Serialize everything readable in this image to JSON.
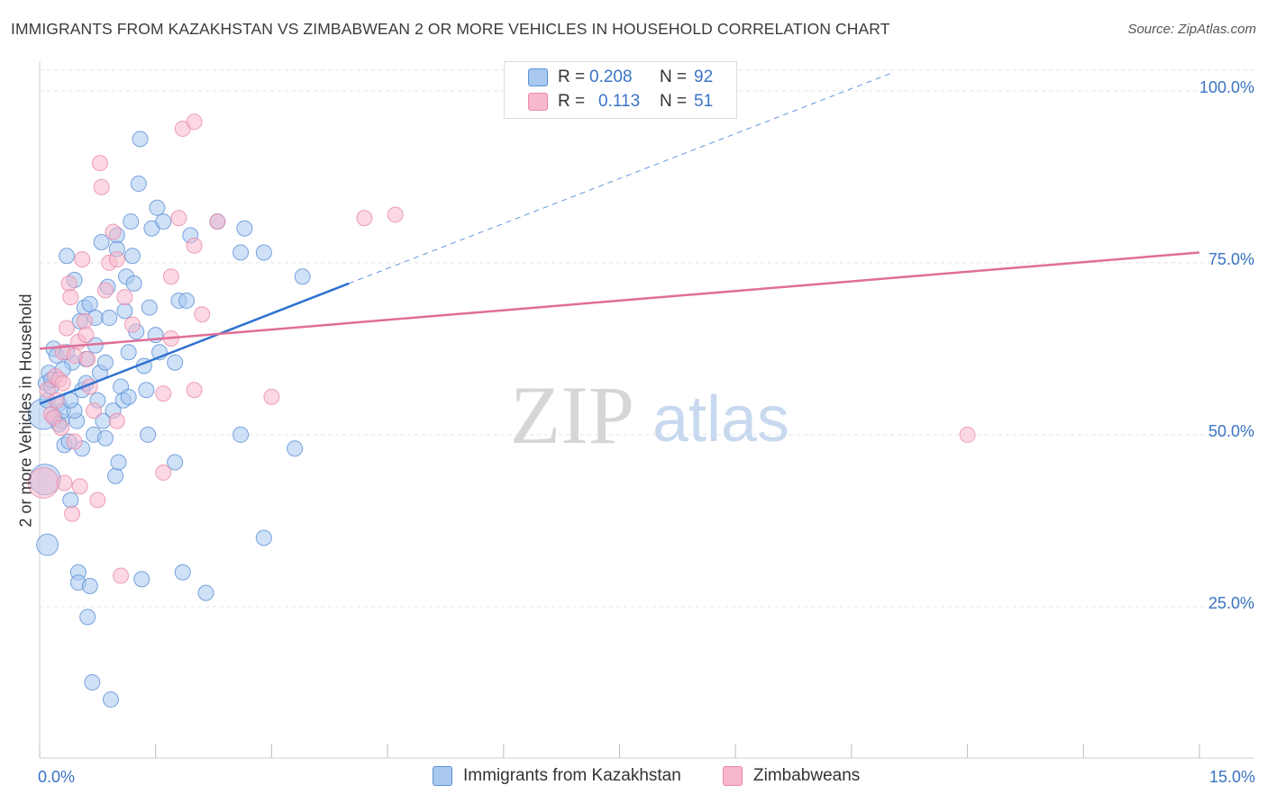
{
  "title": "IMMIGRANTS FROM KAZAKHSTAN VS ZIMBABWEAN 2 OR MORE VEHICLES IN HOUSEHOLD CORRELATION CHART",
  "source": "Source: ZipAtlas.com",
  "watermark": {
    "zip": "ZIP",
    "atlas": "atlas"
  },
  "colors": {
    "blue_fill": "#a8c8f0",
    "blue_stroke": "#5b8fd6",
    "blue_line": "#2f72d1",
    "pink_fill": "#f7b8cc",
    "pink_stroke": "#e98aa9",
    "pink_line": "#e06e97",
    "tick_text": "#3a74c4",
    "grid": "#e3e3e3"
  },
  "legend_top": [
    {
      "r_label": "R =",
      "r_value": "0.208",
      "n_label": "N =",
      "n_value": "92"
    },
    {
      "r_label": "R =",
      "r_value": "0.113",
      "n_label": "N =",
      "n_value": "51"
    }
  ],
  "chart_data": {
    "type": "scatter",
    "title": "IMMIGRANTS FROM KAZAKHSTAN VS ZIMBABWEAN 2 OR MORE VEHICLES IN HOUSEHOLD CORRELATION CHART",
    "xlabel": "",
    "ylabel": "2 or more Vehicles in Household",
    "xlim": [
      0,
      15
    ],
    "ylim": [
      3,
      103
    ],
    "x_tick_labels": {
      "left": "0.0%",
      "right": "15.0%"
    },
    "y_ticks": [
      25,
      50,
      75,
      100
    ],
    "y_tick_labels": [
      "25.0%",
      "50.0%",
      "75.0%",
      "100.0%"
    ],
    "legend_position": "top-center",
    "series": [
      {
        "name": "Immigrants from Kazakhstan",
        "color": "blue",
        "trend": {
          "x0": 0.0,
          "y0": 54.5,
          "x1": 4.0,
          "y1": 72.0,
          "dashed_to_x": 11.0,
          "dashed_to_y": 102.5
        },
        "points": [
          {
            "x": 0.05,
            "y": 53.0,
            "s": 2
          },
          {
            "x": 0.07,
            "y": 43.5,
            "s": 2
          },
          {
            "x": 0.1,
            "y": 34.0,
            "s": 1.4
          },
          {
            "x": 0.08,
            "y": 57.5
          },
          {
            "x": 0.1,
            "y": 55.0
          },
          {
            "x": 0.12,
            "y": 59.0
          },
          {
            "x": 0.15,
            "y": 57.0
          },
          {
            "x": 0.18,
            "y": 62.5
          },
          {
            "x": 0.2,
            "y": 52.5
          },
          {
            "x": 0.22,
            "y": 61.5
          },
          {
            "x": 0.25,
            "y": 54.5
          },
          {
            "x": 0.28,
            "y": 52.0
          },
          {
            "x": 0.3,
            "y": 53.5
          },
          {
            "x": 0.32,
            "y": 48.5
          },
          {
            "x": 0.35,
            "y": 76.0
          },
          {
            "x": 0.38,
            "y": 49.0
          },
          {
            "x": 0.4,
            "y": 40.5
          },
          {
            "x": 0.42,
            "y": 60.5
          },
          {
            "x": 0.45,
            "y": 72.5
          },
          {
            "x": 0.48,
            "y": 52.0
          },
          {
            "x": 0.5,
            "y": 30.0
          },
          {
            "x": 0.5,
            "y": 28.5
          },
          {
            "x": 0.52,
            "y": 66.5
          },
          {
            "x": 0.55,
            "y": 56.5
          },
          {
            "x": 0.58,
            "y": 68.5
          },
          {
            "x": 0.6,
            "y": 61.0
          },
          {
            "x": 0.62,
            "y": 23.5
          },
          {
            "x": 0.65,
            "y": 28.0
          },
          {
            "x": 0.68,
            "y": 14.0
          },
          {
            "x": 0.7,
            "y": 50.0
          },
          {
            "x": 0.72,
            "y": 67.0
          },
          {
            "x": 0.75,
            "y": 55.0
          },
          {
            "x": 0.78,
            "y": 59.0
          },
          {
            "x": 0.8,
            "y": 78.0
          },
          {
            "x": 0.82,
            "y": 52.0
          },
          {
            "x": 0.85,
            "y": 60.5
          },
          {
            "x": 0.88,
            "y": 71.5
          },
          {
            "x": 0.9,
            "y": 67.0
          },
          {
            "x": 0.92,
            "y": 11.5
          },
          {
            "x": 0.95,
            "y": 53.5
          },
          {
            "x": 0.98,
            "y": 44.0
          },
          {
            "x": 1.0,
            "y": 79.0
          },
          {
            "x": 1.02,
            "y": 46.0
          },
          {
            "x": 1.05,
            "y": 57.0
          },
          {
            "x": 1.08,
            "y": 55.0
          },
          {
            "x": 1.1,
            "y": 68.0
          },
          {
            "x": 1.12,
            "y": 73.0
          },
          {
            "x": 1.15,
            "y": 62.0
          },
          {
            "x": 1.18,
            "y": 81.0
          },
          {
            "x": 1.2,
            "y": 76.0
          },
          {
            "x": 1.22,
            "y": 72.0
          },
          {
            "x": 1.25,
            "y": 65.0
          },
          {
            "x": 1.28,
            "y": 86.5
          },
          {
            "x": 1.3,
            "y": 93.0
          },
          {
            "x": 1.32,
            "y": 29.0
          },
          {
            "x": 1.35,
            "y": 60.0
          },
          {
            "x": 1.38,
            "y": 56.5
          },
          {
            "x": 1.4,
            "y": 50.0
          },
          {
            "x": 1.42,
            "y": 68.5
          },
          {
            "x": 1.45,
            "y": 80.0
          },
          {
            "x": 1.5,
            "y": 64.5
          },
          {
            "x": 1.52,
            "y": 83.0
          },
          {
            "x": 1.55,
            "y": 62.0
          },
          {
            "x": 1.6,
            "y": 81.0
          },
          {
            "x": 1.75,
            "y": 60.5
          },
          {
            "x": 1.75,
            "y": 46.0
          },
          {
            "x": 1.8,
            "y": 69.5
          },
          {
            "x": 1.85,
            "y": 30.0
          },
          {
            "x": 1.9,
            "y": 69.5
          },
          {
            "x": 1.95,
            "y": 79.0
          },
          {
            "x": 2.15,
            "y": 27.0
          },
          {
            "x": 2.3,
            "y": 81.0
          },
          {
            "x": 2.6,
            "y": 76.5
          },
          {
            "x": 2.65,
            "y": 80.0
          },
          {
            "x": 2.6,
            "y": 50.0
          },
          {
            "x": 2.9,
            "y": 76.5
          },
          {
            "x": 2.9,
            "y": 35.0
          },
          {
            "x": 3.3,
            "y": 48.0
          },
          {
            "x": 3.4,
            "y": 73.0
          },
          {
            "x": 0.35,
            "y": 62.0
          },
          {
            "x": 0.45,
            "y": 53.5
          },
          {
            "x": 0.55,
            "y": 48.0
          },
          {
            "x": 0.6,
            "y": 57.5
          },
          {
            "x": 0.25,
            "y": 51.5
          },
          {
            "x": 0.15,
            "y": 58.0
          },
          {
            "x": 0.3,
            "y": 59.5
          },
          {
            "x": 0.4,
            "y": 55.0
          },
          {
            "x": 0.65,
            "y": 69.0
          },
          {
            "x": 0.72,
            "y": 63.0
          },
          {
            "x": 0.85,
            "y": 49.5
          },
          {
            "x": 1.0,
            "y": 77.0
          },
          {
            "x": 1.15,
            "y": 55.5
          }
        ]
      },
      {
        "name": "Zimbabweans",
        "color": "pink",
        "trend": {
          "x0": 0.0,
          "y0": 62.5,
          "x1": 15.0,
          "y1": 76.5
        },
        "points": [
          {
            "x": 0.05,
            "y": 43.0,
            "s": 2
          },
          {
            "x": 0.1,
            "y": 56.5
          },
          {
            "x": 0.15,
            "y": 53.0
          },
          {
            "x": 0.18,
            "y": 52.5
          },
          {
            "x": 0.2,
            "y": 58.5
          },
          {
            "x": 0.22,
            "y": 55.0
          },
          {
            "x": 0.25,
            "y": 58.0
          },
          {
            "x": 0.28,
            "y": 51.0
          },
          {
            "x": 0.3,
            "y": 62.0
          },
          {
            "x": 0.32,
            "y": 43.0
          },
          {
            "x": 0.35,
            "y": 65.5
          },
          {
            "x": 0.38,
            "y": 72.0
          },
          {
            "x": 0.4,
            "y": 70.0
          },
          {
            "x": 0.42,
            "y": 38.5
          },
          {
            "x": 0.45,
            "y": 49.0
          },
          {
            "x": 0.5,
            "y": 63.5
          },
          {
            "x": 0.52,
            "y": 42.5
          },
          {
            "x": 0.55,
            "y": 75.5
          },
          {
            "x": 0.58,
            "y": 66.5
          },
          {
            "x": 0.6,
            "y": 64.5
          },
          {
            "x": 0.62,
            "y": 61.0
          },
          {
            "x": 0.65,
            "y": 57.0
          },
          {
            "x": 0.7,
            "y": 53.5
          },
          {
            "x": 0.75,
            "y": 40.5
          },
          {
            "x": 0.78,
            "y": 89.5
          },
          {
            "x": 0.8,
            "y": 86.0
          },
          {
            "x": 0.85,
            "y": 71.0
          },
          {
            "x": 0.9,
            "y": 75.0
          },
          {
            "x": 0.95,
            "y": 79.5
          },
          {
            "x": 1.0,
            "y": 52.0
          },
          {
            "x": 1.0,
            "y": 75.5
          },
          {
            "x": 1.05,
            "y": 29.5
          },
          {
            "x": 1.1,
            "y": 70.0
          },
          {
            "x": 1.2,
            "y": 66.0
          },
          {
            "x": 1.6,
            "y": 44.5
          },
          {
            "x": 1.6,
            "y": 56.0
          },
          {
            "x": 1.7,
            "y": 73.0
          },
          {
            "x": 1.7,
            "y": 64.0
          },
          {
            "x": 1.8,
            "y": 81.5
          },
          {
            "x": 1.85,
            "y": 94.5
          },
          {
            "x": 2.0,
            "y": 95.5
          },
          {
            "x": 2.0,
            "y": 56.5
          },
          {
            "x": 2.0,
            "y": 77.5
          },
          {
            "x": 2.1,
            "y": 67.5
          },
          {
            "x": 2.3,
            "y": 81.0
          },
          {
            "x": 3.0,
            "y": 55.5
          },
          {
            "x": 4.2,
            "y": 81.5
          },
          {
            "x": 4.6,
            "y": 82.0
          },
          {
            "x": 12.0,
            "y": 50.0
          },
          {
            "x": 0.3,
            "y": 57.5
          },
          {
            "x": 0.45,
            "y": 61.5
          }
        ]
      }
    ]
  },
  "legend_bottom": [
    "Immigrants from Kazakhstan",
    "Zimbabweans"
  ]
}
